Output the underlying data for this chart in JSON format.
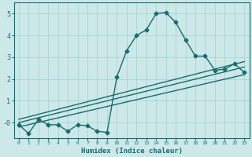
{
  "title": "",
  "xlabel": "Humidex (Indice chaleur)",
  "xlim": [
    -0.5,
    23.5
  ],
  "ylim": [
    -0.7,
    5.5
  ],
  "xticks": [
    0,
    1,
    2,
    3,
    4,
    5,
    6,
    7,
    8,
    9,
    10,
    11,
    12,
    13,
    14,
    15,
    16,
    17,
    18,
    19,
    20,
    21,
    22,
    23
  ],
  "yticks": [
    0,
    1,
    2,
    3,
    4,
    5
  ],
  "bg_color": "#cce8e8",
  "line_color": "#1a6b6b",
  "grid_color": "#aad4d4",
  "main_x": [
    0,
    1,
    2,
    3,
    4,
    5,
    6,
    7,
    8,
    9,
    10,
    11,
    12,
    13,
    14,
    15,
    16,
    17,
    18,
    19,
    20,
    21,
    22,
    23
  ],
  "main_y": [
    -0.1,
    -0.5,
    0.15,
    -0.1,
    -0.1,
    -0.4,
    -0.1,
    -0.15,
    -0.4,
    -0.45,
    2.1,
    3.3,
    4.0,
    4.25,
    5.0,
    5.05,
    4.6,
    3.8,
    3.05,
    3.05,
    2.4,
    2.45,
    2.7,
    2.3
  ],
  "line1_x": [
    0,
    23
  ],
  "line1_y": [
    -0.2,
    2.2
  ],
  "line2_x": [
    0,
    23
  ],
  "line2_y": [
    0.0,
    2.55
  ],
  "line3_x": [
    0,
    23
  ],
  "line3_y": [
    0.15,
    2.8
  ],
  "marker": "D",
  "markersize": 2.5,
  "linewidth": 1.0
}
